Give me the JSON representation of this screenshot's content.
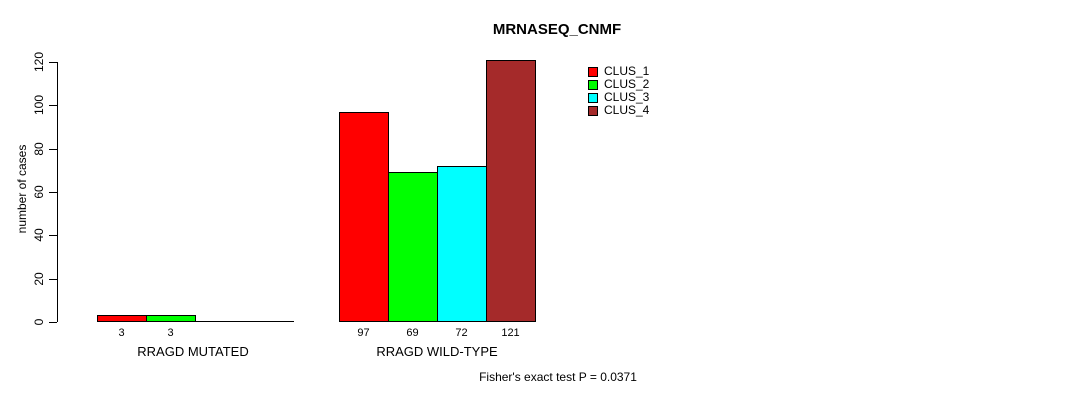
{
  "title": "MRNASEQ_CNMF",
  "footer": "Fisher's exact test P = 0.0371",
  "chart_data": {
    "type": "bar",
    "title": "MRNASEQ_CNMF",
    "xlabel": "",
    "ylabel": "number of cases",
    "ylim": [
      0,
      120
    ],
    "yticks": [
      0,
      20,
      40,
      60,
      80,
      100,
      120
    ],
    "grid": false,
    "legend_position": "top-right-inside",
    "categories": [
      "RRAGD MUTATED",
      "RRAGD WILD-TYPE"
    ],
    "series": [
      {
        "name": "CLUS_1",
        "color": "#FF0000",
        "values": [
          3,
          97
        ]
      },
      {
        "name": "CLUS_2",
        "color": "#00FF00",
        "values": [
          3,
          69
        ]
      },
      {
        "name": "CLUS_3",
        "color": "#00FFFF",
        "values": [
          0,
          72
        ]
      },
      {
        "name": "CLUS_4",
        "color": "#A52A2A",
        "values": [
          0,
          121
        ]
      }
    ],
    "bar_value_labels": [
      [
        "3",
        "3",
        "",
        ""
      ],
      [
        "97",
        "69",
        "72",
        "121"
      ]
    ],
    "annotation": "Fisher's exact test P = 0.0371",
    "axis_color": "#000000",
    "background_color": "#FFFFFF"
  }
}
